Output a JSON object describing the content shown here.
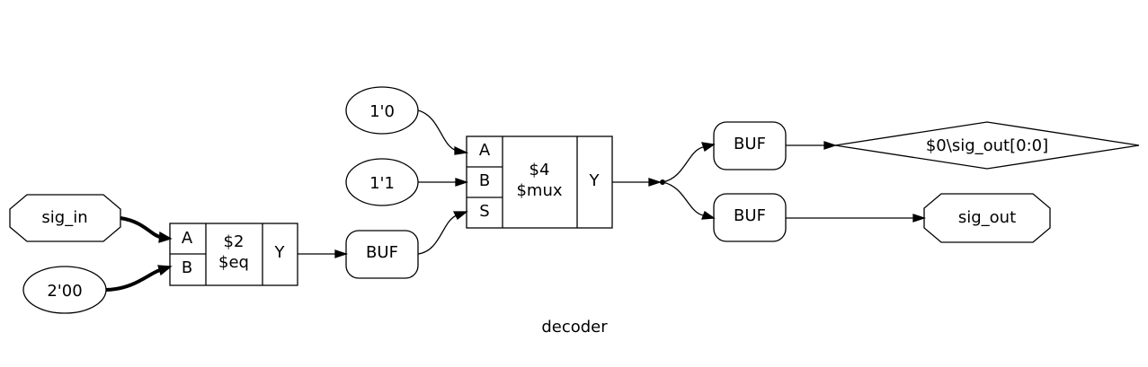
{
  "title": "decoder",
  "ports": {
    "sig_in": "sig_in",
    "sig_out": "sig_out",
    "sig_out_reg": "$0\\sig_out[0:0]"
  },
  "constants": {
    "const_2b00": "2'00",
    "const_1b0": "1'0",
    "const_1b1": "1'1"
  },
  "cells": {
    "eq": {
      "id": "$2",
      "type": "$eq",
      "port_a": "A",
      "port_b": "B",
      "port_y": "Y"
    },
    "mux": {
      "id": "$4",
      "type": "$mux",
      "port_a": "A",
      "port_b": "B",
      "port_s": "S",
      "port_y": "Y"
    }
  },
  "buffers": {
    "buf1": "BUF",
    "buf2": "BUF",
    "buf3": "BUF"
  }
}
